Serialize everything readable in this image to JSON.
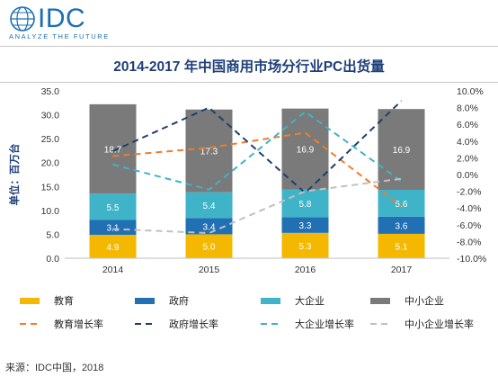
{
  "brand": {
    "name": "IDC",
    "tagline": "ANALYZE THE FUTURE",
    "logo_color": "#1a6fb4"
  },
  "source": "来源：IDC中国，2018",
  "chart_data": {
    "type": "bar",
    "stacked": true,
    "title": "2014-2017 年中国商用市场分行业PC出货量",
    "ylabel": "单位：百万台",
    "categories": [
      "2014",
      "2015",
      "2016",
      "2017"
    ],
    "ylim": [
      0,
      35
    ],
    "yticks": [
      "0.0",
      "5.0",
      "10.0",
      "15.0",
      "20.0",
      "25.0",
      "30.0",
      "35.0"
    ],
    "y2lim": [
      -10,
      10
    ],
    "y2ticks": [
      "-10.0%",
      "-8.0%",
      "-6.0%",
      "-4.0%",
      "-2.0%",
      "0.0%",
      "2.0%",
      "4.0%",
      "6.0%",
      "8.0%",
      "10.0%"
    ],
    "grid": false,
    "legend_position": "bottom",
    "series": [
      {
        "name": "教育",
        "kind": "bar",
        "color": "#f5b800",
        "values": [
          4.9,
          5.0,
          5.3,
          5.1
        ],
        "labels": [
          "4.9",
          "5.0",
          "5.3",
          "5.1"
        ]
      },
      {
        "name": "政府",
        "kind": "bar",
        "color": "#2170b3",
        "values": [
          3.1,
          3.4,
          3.3,
          3.6
        ],
        "labels": [
          "3.1",
          "3.4",
          "3.3",
          "3.6"
        ]
      },
      {
        "name": "大企业",
        "kind": "bar",
        "color": "#3fb3c8",
        "values": [
          5.5,
          5.4,
          5.8,
          5.6
        ],
        "labels": [
          "5.5",
          "5.4",
          "5.8",
          "5.6"
        ]
      },
      {
        "name": "中小企业",
        "kind": "bar",
        "color": "#7a7a7a",
        "values": [
          18.7,
          17.3,
          16.9,
          16.9
        ],
        "labels": [
          "18.7",
          "17.3",
          "16.9",
          "16.9"
        ]
      },
      {
        "name": "教育增长率",
        "kind": "line",
        "axis": "right",
        "dash": "long",
        "color": "#f07d2c",
        "values": [
          2.2,
          3.2,
          5.0,
          -3.8
        ]
      },
      {
        "name": "政府增长率",
        "kind": "line",
        "axis": "right",
        "dash": "long",
        "color": "#1e3f6e",
        "values": [
          2.8,
          8.0,
          -2.2,
          8.8
        ]
      },
      {
        "name": "大企业增长率",
        "kind": "line",
        "axis": "right",
        "dash": "long",
        "color": "#3fb3c8",
        "values": [
          1.2,
          -1.8,
          7.5,
          -0.8
        ]
      },
      {
        "name": "中小企业增长率",
        "kind": "line",
        "axis": "right",
        "dash": "long",
        "color": "#c0c0c0",
        "values": [
          -6.5,
          -7.0,
          -2.0,
          -0.5
        ]
      }
    ]
  }
}
